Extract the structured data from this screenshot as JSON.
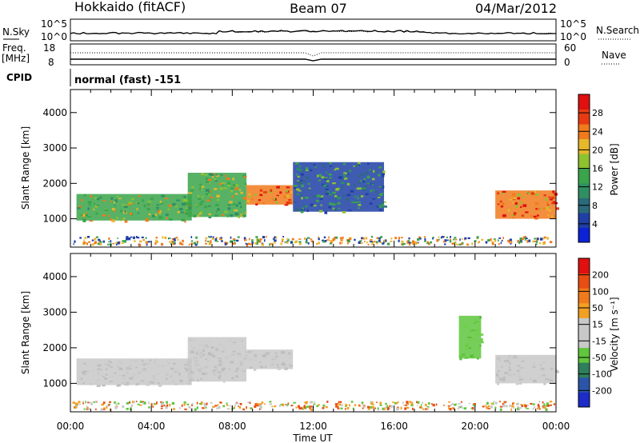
{
  "header": {
    "station": "Hokkaido (fitACF)",
    "beam": "Beam 07",
    "date": "04/Mar/2012"
  },
  "noise_panel": {
    "left_label": "N.Sky",
    "right_label": "N.Search",
    "ticks_left": [
      "10^5",
      "10^0"
    ],
    "ticks_right": [
      "10^5",
      "10^0"
    ]
  },
  "freq_panel": {
    "left_label_1": "Freq.",
    "left_label_2": "[MHz]",
    "right_label": "Nave",
    "ticks_left": [
      "18",
      "8"
    ],
    "ticks_right": [
      "60",
      "0"
    ]
  },
  "cpid": {
    "label": "CPID",
    "value": "normal (fast) -151"
  },
  "chart_data": [
    {
      "type": "heatmap",
      "name": "power",
      "ylabel": "Slant Range [km]",
      "yticks": [
        1000,
        2000,
        3000,
        4000
      ],
      "ylim": [
        200,
        4650
      ],
      "xlim_hours": [
        0,
        24
      ],
      "colorbar_label": "Power [dB]",
      "colorbar_ticks": [
        "4",
        "8",
        "12",
        "16",
        "20",
        "24",
        "28"
      ],
      "colorbar_colors": [
        "#0b22d6",
        "#1f3fa5",
        "#2a6a7a",
        "#2f8f63",
        "#3aa44a",
        "#8ec22f",
        "#e6b82a",
        "#f07a1c",
        "#e83a12",
        "#e01010"
      ],
      "echo_regions": [
        {
          "x": [
            0.3,
            6.0
          ],
          "y": [
            950,
            1700
          ],
          "level": "high"
        },
        {
          "x": [
            5.8,
            8.7
          ],
          "y": [
            1050,
            2300
          ],
          "level": "high"
        },
        {
          "x": [
            8.7,
            11.0
          ],
          "y": [
            1400,
            1950
          ],
          "level": "peak"
        },
        {
          "x": [
            11.0,
            15.5
          ],
          "y": [
            1200,
            2600
          ],
          "level": "mid"
        },
        {
          "x": [
            21.0,
            24.0
          ],
          "y": [
            1000,
            1800
          ],
          "level": "peak"
        }
      ]
    },
    {
      "type": "heatmap",
      "name": "velocity",
      "ylabel": "Slant Range [km]",
      "yticks": [
        1000,
        2000,
        3000,
        4000
      ],
      "ylim": [
        200,
        4650
      ],
      "xlim_hours": [
        0,
        24
      ],
      "xticks": [
        "00:00",
        "04:00",
        "08:00",
        "12:00",
        "16:00",
        "20:00",
        "00:00"
      ],
      "xlabel": "Time UT",
      "colorbar_label": "Velocity [m s⁻¹]",
      "colorbar_ticks": [
        "200",
        "100",
        "50",
        "15",
        "-15",
        "-50",
        "-100",
        "-200"
      ],
      "colorbar_colors": [
        "#1d2cc8",
        "#2a55a8",
        "#2e7f5b",
        "#5fc63d",
        "#c8c8c8",
        "#c8c8c8",
        "#f2a023",
        "#f07a1c",
        "#e84d12",
        "#e01010"
      ],
      "echo_regions": [
        {
          "x": [
            0.3,
            6.0
          ],
          "y": [
            950,
            1700
          ],
          "level": "ground"
        },
        {
          "x": [
            5.8,
            8.7
          ],
          "y": [
            1050,
            2300
          ],
          "level": "ground"
        },
        {
          "x": [
            8.7,
            11.0
          ],
          "y": [
            1400,
            1950
          ],
          "level": "ground"
        },
        {
          "x": [
            19.2,
            20.3
          ],
          "y": [
            1700,
            2900
          ],
          "level": "green"
        },
        {
          "x": [
            21.0,
            24.0
          ],
          "y": [
            1000,
            1800
          ],
          "level": "ground"
        }
      ]
    }
  ]
}
